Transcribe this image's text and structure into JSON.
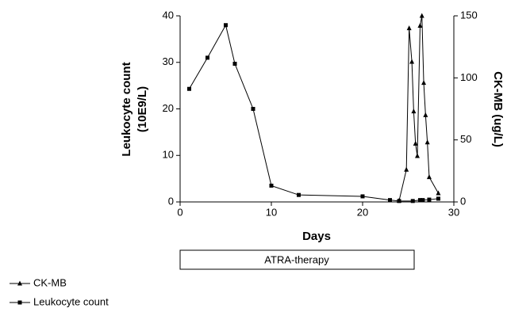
{
  "chart_data": {
    "type": "line",
    "xlabel": "Days",
    "ylabel": [
      "Leukocyte count",
      "(10E9/L)"
    ],
    "y2label": "CK-MB (ug/L)",
    "annotation": "ATRA-therapy",
    "xlim": [
      0,
      30
    ],
    "xticks": [
      0,
      10,
      20,
      30
    ],
    "ylim": [
      0,
      40
    ],
    "yticks": [
      0,
      10,
      20,
      30,
      40
    ],
    "y2lim": [
      0,
      150
    ],
    "y2ticks": [
      0,
      50,
      100,
      150
    ],
    "legend": "bottom-left",
    "series": [
      {
        "name": "CK-MB",
        "color": "#000000",
        "marker": "triangle",
        "axis": "y2",
        "x": [
          24,
          24.8,
          25.1,
          25.4,
          25.6,
          25.8,
          26,
          26.3,
          26.5,
          26.7,
          26.9,
          27.1,
          27.3,
          28.3
        ],
        "values": [
          1,
          26,
          140,
          113,
          73,
          47,
          37,
          142,
          150,
          96,
          70,
          48,
          20,
          7
        ]
      },
      {
        "name": "Leukocyte count",
        "color": "#000000",
        "marker": "square",
        "x": [
          1,
          3,
          5,
          6,
          8,
          10,
          13,
          20,
          23,
          24,
          25.5,
          26.3,
          26.6,
          27.3,
          28.3
        ],
        "values": [
          24.3,
          31,
          38,
          29.7,
          20,
          3.5,
          1.5,
          1.2,
          0.4,
          0.2,
          0.2,
          0.4,
          0.4,
          0.5,
          0.7
        ]
      }
    ]
  }
}
